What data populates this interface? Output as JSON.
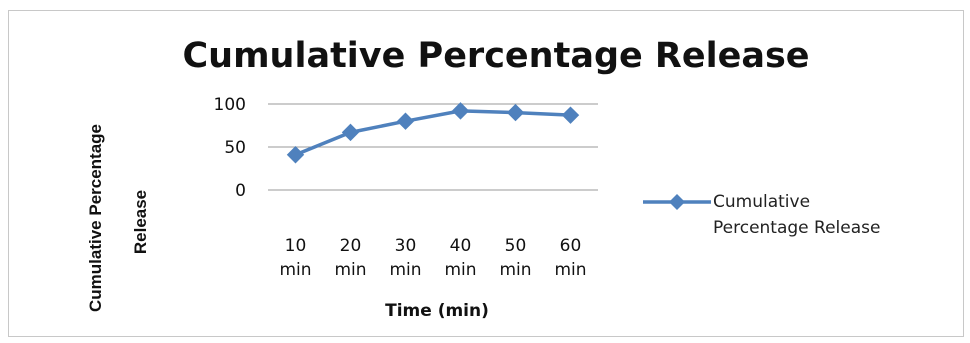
{
  "chart_data": {
    "type": "line",
    "title": "Cumulative  Percentage Release",
    "xlabel": "Time  (min)",
    "ylabel": "Cumulative  Percentage Release",
    "categories": [
      "10 min",
      "20 min",
      "30 min",
      "40 min",
      "50 min",
      "60 min"
    ],
    "series": [
      {
        "name": "Cumulative Percentage Release",
        "values": [
          41,
          67,
          80,
          92,
          90,
          87
        ],
        "color": "#4f81bd",
        "marker": "diamond"
      }
    ],
    "ylim": [
      0,
      100
    ],
    "yticks": [
      "0",
      "50",
      "100"
    ],
    "grid": "horizontal",
    "legend_position": "right"
  }
}
